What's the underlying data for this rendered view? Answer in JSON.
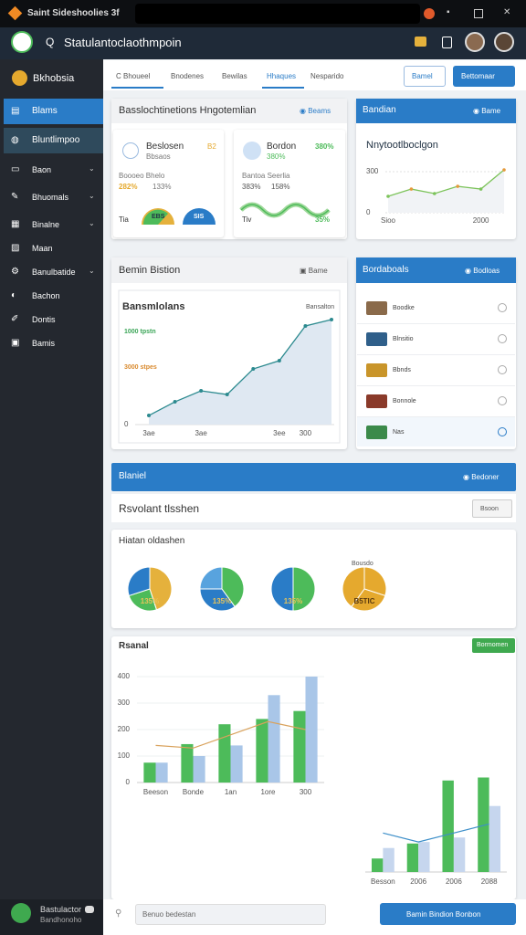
{
  "window": {
    "title": "Saint Sideshoolies 3f"
  },
  "header": {
    "search": "Statulantoclaothmpoin"
  },
  "sidebar": {
    "profile": "Bkhobsia",
    "items": [
      "Blams",
      "Bluntlimpoo",
      "Baon",
      "Bhuomals",
      "Binalne",
      "Maan",
      "Banulbatide",
      "Bachon",
      "Dontis",
      "Bamis"
    ],
    "footer": {
      "name": "Bastulactor",
      "sub": "Bandhonoho"
    }
  },
  "tabs": {
    "items": [
      "C Bhoueel",
      "Bnodenes",
      "Bewilas",
      "Hhaques",
      "Nesparido"
    ],
    "buttons": [
      "Bamel",
      "Bettomaar"
    ]
  },
  "overview": {
    "title": "Basslochtinetions Hngotemlian",
    "action": "Beams",
    "cards": [
      {
        "name": "Beslosen",
        "badge": "B2",
        "sub": "Bbsaos",
        "row": "Boooeo Bhelo",
        "stat1": "282%",
        "stat2": "133%",
        "foot": "Tia",
        "gauge": "EBS",
        "gauge2": "SIS"
      },
      {
        "name": "Bordon",
        "badge": "380%",
        "sub": "380%",
        "row": "Bantoa Seerlia",
        "stat1": "383%",
        "stat2": "158%",
        "foot": "Tiv",
        "gauge": "35%"
      }
    ]
  },
  "trend": {
    "header": "Bandian",
    "action": "Bame",
    "chart_data": {
      "type": "line",
      "title": "Nnytootlboclgon",
      "categories": [
        "Sioo",
        null,
        null,
        null,
        "2000",
        null
      ],
      "values": [
        120,
        173,
        140,
        193,
        173,
        313
      ],
      "color": "#7cc35a",
      "ylim": [
        0,
        350
      ],
      "yticks": [
        0,
        300
      ]
    }
  },
  "main_chart": {
    "header": "Bemin Bistion",
    "action": "Bame",
    "note": "Bansalton",
    "label_a": "1000 tpstn",
    "label_b": "3000 stpes",
    "chart_data": {
      "type": "area",
      "title": "Bansmlolans",
      "categories": [
        "3ae",
        null,
        "3ae",
        null,
        null,
        "3ee",
        "300",
        null
      ],
      "values": [
        83,
        208,
        308,
        275,
        508,
        583,
        900,
        958
      ],
      "color": "#2c8a8f",
      "ylim": [
        0,
        1000
      ],
      "yticks": [
        0
      ]
    }
  },
  "list": {
    "header": "Bordaboals",
    "action": "Bodloas",
    "items": [
      "Boodke",
      "Blnsitio",
      "Bbnds",
      "Bonnole",
      "Nas"
    ]
  },
  "banner": {
    "title": "Blaniel",
    "action": "Bedoner"
  },
  "filter": {
    "title": "Rsvolant tlsshen",
    "select": "Bsoon"
  },
  "pies": {
    "title": "Hiatan oldashen",
    "note": "Bousdo",
    "chart_data": [
      {
        "type": "pie",
        "label": "135%",
        "values": [
          45,
          25,
          30
        ],
        "colors": [
          "#e5b13c",
          "#4dbb5a",
          "#2a7cc7"
        ]
      },
      {
        "type": "pie",
        "label": "135%",
        "values": [
          40,
          35,
          25
        ],
        "colors": [
          "#4dbb5a",
          "#2a7cc7",
          "#58a3de"
        ]
      },
      {
        "type": "pie",
        "label": "135%",
        "values": [
          50,
          50
        ],
        "colors": [
          "#4dbb5a",
          "#2a7cc7"
        ]
      },
      {
        "type": "pie",
        "label": "B5TIC",
        "values": [
          30,
          30,
          40
        ],
        "colors": [
          "#e5a92e",
          "#e5a92e",
          "#e5a92e"
        ]
      }
    ]
  },
  "bars": {
    "title": "Rsanal",
    "action": "Bormomen",
    "chart_data": [
      {
        "type": "bar",
        "categories": [
          "Beeson",
          "Bonde",
          "1an",
          "1ore",
          "300"
        ],
        "ylim": [
          0,
          400
        ],
        "yticks": [
          0,
          100,
          200,
          300,
          400
        ],
        "series": [
          {
            "color": "#4dbb5a",
            "values": [
              75,
              145,
              220,
              240,
              270
            ]
          },
          {
            "color": "#a9c6e8",
            "values": [
              75,
              100,
              140,
              330,
              400
            ]
          }
        ],
        "line": {
          "color": "#d9a25c",
          "values": [
            140,
            130,
            180,
            230,
            200
          ]
        }
      },
      {
        "type": "bar",
        "categories": [
          "Besson",
          "2006",
          "2006",
          "2088"
        ],
        "ylim": [
          0,
          350
        ],
        "series": [
          {
            "color": "#4dbb5a",
            "values": [
              45,
              95,
              305,
              315
            ]
          },
          {
            "color": "#c6d6ee",
            "values": [
              80,
              100,
              115,
              220
            ]
          }
        ],
        "line": {
          "color": "#3d8fc9",
          "values": [
            130,
            100,
            130,
            160
          ]
        }
      }
    ]
  },
  "footer": {
    "search": "Benuo bedestan",
    "button": "Bamin Bindion Bonbon"
  }
}
